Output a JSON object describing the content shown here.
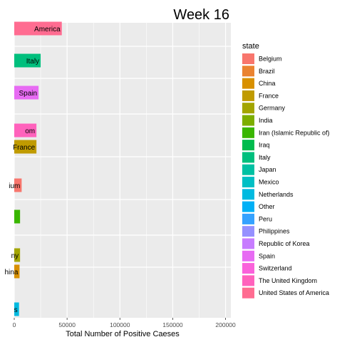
{
  "chart_data": {
    "type": "bar",
    "orientation": "horizontal",
    "title": "Week 16",
    "xlabel": "Total Number of Positive Caeses",
    "ylabel": "",
    "xlim": [
      0,
      205000
    ],
    "xticks": [
      0,
      50000,
      100000,
      150000,
      200000
    ],
    "xtick_labels": [
      "0",
      "50000",
      "100000",
      "150000",
      "200000"
    ],
    "grid": true,
    "bars": [
      {
        "label": "America",
        "state": "United States of America",
        "value": 45000
      },
      {
        "label": "Italy",
        "state": "Italy",
        "value": 25000
      },
      {
        "label": "Spain",
        "state": "Spain",
        "value": 23000
      },
      {
        "label": "om",
        "state": "The United Kingdom",
        "value": 21000
      },
      {
        "label": "France",
        "state": "France",
        "value": 21000
      },
      {
        "label": "ium",
        "state": "Belgium",
        "value": 7000
      },
      {
        "label": "",
        "state": "Iran (Islamic Republic of)",
        "value": 5500
      },
      {
        "label": "ny",
        "state": "Germany",
        "value": 5500
      },
      {
        "label": "hina",
        "state": "China",
        "value": 5000
      },
      {
        "label": "s",
        "state": "Netherlands",
        "value": 4500
      }
    ],
    "legend": {
      "title": "state",
      "position": "right",
      "items": [
        {
          "name": "Belgium",
          "color": "#F8766D"
        },
        {
          "name": "Brazil",
          "color": "#EA8331"
        },
        {
          "name": "China",
          "color": "#D89000"
        },
        {
          "name": "France",
          "color": "#C09B00"
        },
        {
          "name": "Germany",
          "color": "#A3A500"
        },
        {
          "name": "India",
          "color": "#7CAE00"
        },
        {
          "name": "Iran (Islamic Republic of)",
          "color": "#39B600"
        },
        {
          "name": "Iraq",
          "color": "#00BB4E"
        },
        {
          "name": "Italy",
          "color": "#00BF7D"
        },
        {
          "name": "Japan",
          "color": "#00C1A3"
        },
        {
          "name": "Mexico",
          "color": "#00BFC4"
        },
        {
          "name": "Netherlands",
          "color": "#00BAE0"
        },
        {
          "name": "Other",
          "color": "#00B0F6"
        },
        {
          "name": "Peru",
          "color": "#35A2FF"
        },
        {
          "name": "Philippines",
          "color": "#9590FF"
        },
        {
          "name": "Republic of Korea",
          "color": "#C77CFF"
        },
        {
          "name": "Spain",
          "color": "#E76BF3"
        },
        {
          "name": "Switzerland",
          "color": "#FA62DB"
        },
        {
          "name": "The United Kingdom",
          "color": "#FF62BC"
        },
        {
          "name": "United States of America",
          "color": "#FF6C91"
        }
      ]
    }
  }
}
